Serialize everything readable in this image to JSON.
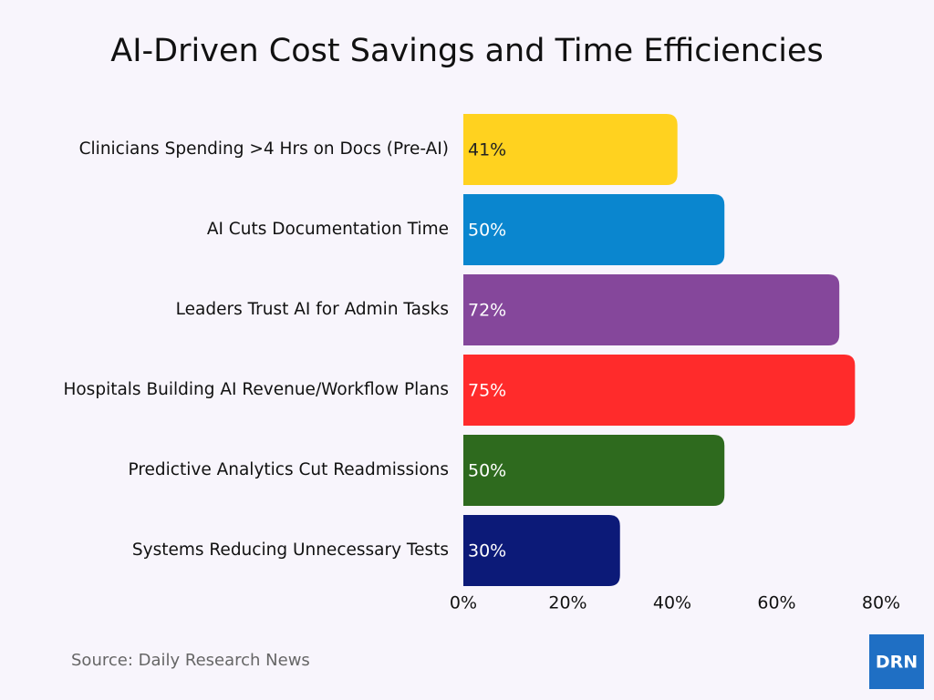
{
  "chart_data": {
    "type": "bar",
    "orientation": "horizontal",
    "title": "AI-Driven Cost Savings and Time Efficiencies",
    "categories": [
      "Clinicians Spending >4 Hrs on Docs (Pre-AI)",
      "AI Cuts Documentation Time",
      "Leaders Trust AI for Admin Tasks",
      "Hospitals Building AI Revenue/Workflow Plans",
      "Predictive Analytics Cut Readmissions",
      "Systems Reducing Unnecessary Tests"
    ],
    "values": [
      41,
      50,
      72,
      75,
      50,
      30
    ],
    "value_labels": [
      "41%",
      "50%",
      "72%",
      "75%",
      "50%",
      "30%"
    ],
    "colors": [
      "#ffd21f",
      "#0a86cf",
      "#85479b",
      "#ff2b2b",
      "#2e6a1e",
      "#0c1a78"
    ],
    "xlim": [
      0,
      80
    ],
    "xticks": [
      {
        "value": 0,
        "label": "0%"
      },
      {
        "value": 20,
        "label": "20%"
      },
      {
        "value": 40,
        "label": "40%"
      },
      {
        "value": 60,
        "label": "60%"
      },
      {
        "value": 80,
        "label": "80%"
      }
    ],
    "grid": false,
    "source": "Source: Daily Research News",
    "logo": "DRN"
  }
}
